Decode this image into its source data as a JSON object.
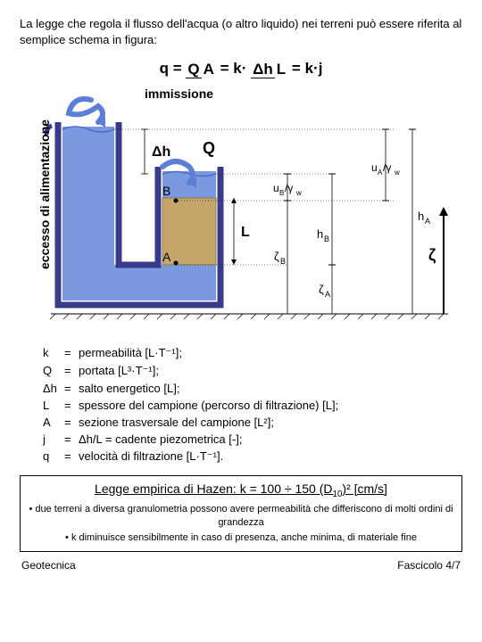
{
  "intro": "La legge che regola il flusso dell'acqua (o altro liquido) nei terreni può essere riferita al semplice schema in figura:",
  "formula": {
    "q": "q",
    "eq": "=",
    "Q": "Q",
    "A": "A",
    "k": "k",
    "dot": "·",
    "dh": "Δh",
    "L": "L",
    "j": "j"
  },
  "labels": {
    "immissione": "immissione",
    "eccesso": "eccesso di alimentazione",
    "dh": "Δh",
    "Q": "Q",
    "B": "B",
    "A": "A",
    "L": "L",
    "uB": "u",
    "uBsub": "B",
    "gw": "γ",
    "gwsub": "w",
    "uA": "u",
    "uAsub": "A",
    "zB": "ζ",
    "zBsub": "B",
    "zA": "ζ",
    "zAsub": "A",
    "hB": "h",
    "hBsub": "B",
    "hA": "h",
    "hAsub": "A",
    "zeta": "ζ"
  },
  "defs": [
    {
      "sym": "k",
      "eq": "=",
      "txt": "permeabilità [L·T⁻¹];"
    },
    {
      "sym": "Q",
      "eq": "=",
      "txt": "portata [L³·T⁻¹];"
    },
    {
      "sym": "Δh",
      "eq": "=",
      "txt": "salto energetico [L];"
    },
    {
      "sym": "L",
      "eq": "=",
      "txt": "spessore del campione (percorso di filtrazione) [L];"
    },
    {
      "sym": "A",
      "eq": "=",
      "txt": "sezione trasversale del campione [L²];"
    },
    {
      "sym": "j",
      "eq": "=",
      "txt": "Δh/L = cadente piezometrica [-];"
    },
    {
      "sym": "q",
      "eq": "=",
      "txt": "velocità di filtrazione [L·T⁻¹]."
    }
  ],
  "hazen": {
    "title_pre": "Legge empirica di Hazen: k = 100 ÷ 150 (D",
    "title_sub": "10",
    "title_post": ")² [cm/s]",
    "b1": "• due terreni a diversa granulometria possono avere permeabilità che differiscono di molti ordini di grandezza",
    "b2": "• k diminuisce sensibilmente in caso di presenza, anche minima, di materiale fine"
  },
  "footer": {
    "left": "Geotecnica",
    "right": "Fascicolo 4/7"
  },
  "colors": {
    "water": "#7a99df",
    "waterStroke": "#4a6fc7",
    "soil": "#c6a66a",
    "soilStroke": "#8b7a4a",
    "container": "#3a3a8a",
    "arrowBlue": "#5b7fd6",
    "black": "#000000"
  }
}
